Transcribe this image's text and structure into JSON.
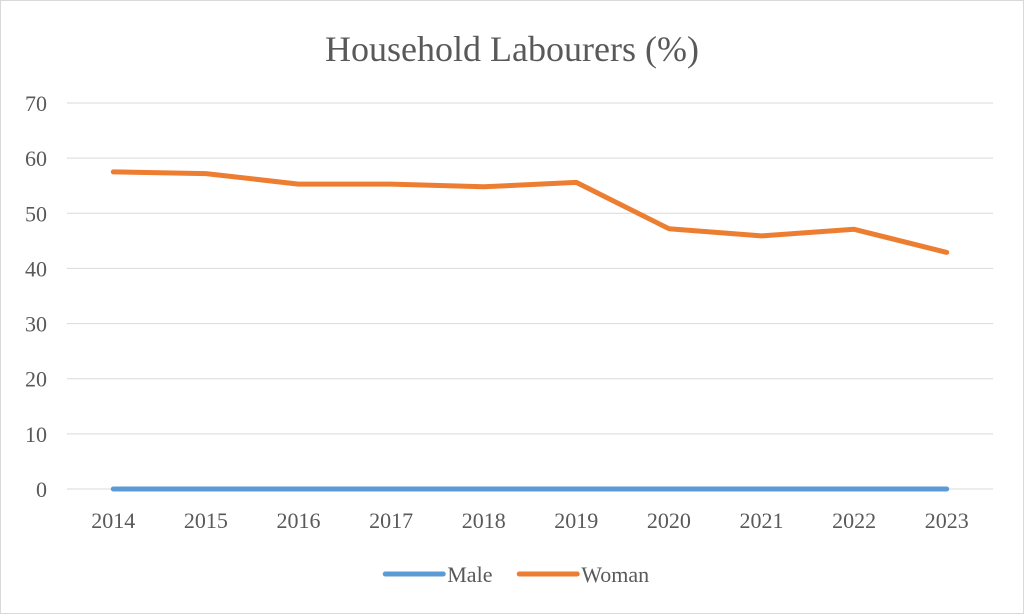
{
  "chart_data": {
    "type": "line",
    "title": "Household Labourers (%)",
    "xlabel": "",
    "ylabel": "",
    "categories": [
      "2014",
      "2015",
      "2016",
      "2017",
      "2018",
      "2019",
      "2020",
      "2021",
      "2022",
      "2023"
    ],
    "ylim": [
      0,
      70
    ],
    "yticks": [
      0,
      10,
      20,
      30,
      40,
      50,
      60,
      70
    ],
    "grid": true,
    "legend_position": "bottom",
    "series": [
      {
        "name": "Male",
        "color": "#5b9bd5",
        "values": [
          0,
          0,
          0,
          0,
          0,
          0,
          0,
          0,
          0,
          0
        ]
      },
      {
        "name": "Woman",
        "color": "#ed7d31",
        "values": [
          57.5,
          57.2,
          55.3,
          55.3,
          54.8,
          55.6,
          47.2,
          45.9,
          47.1,
          42.9
        ]
      }
    ]
  }
}
